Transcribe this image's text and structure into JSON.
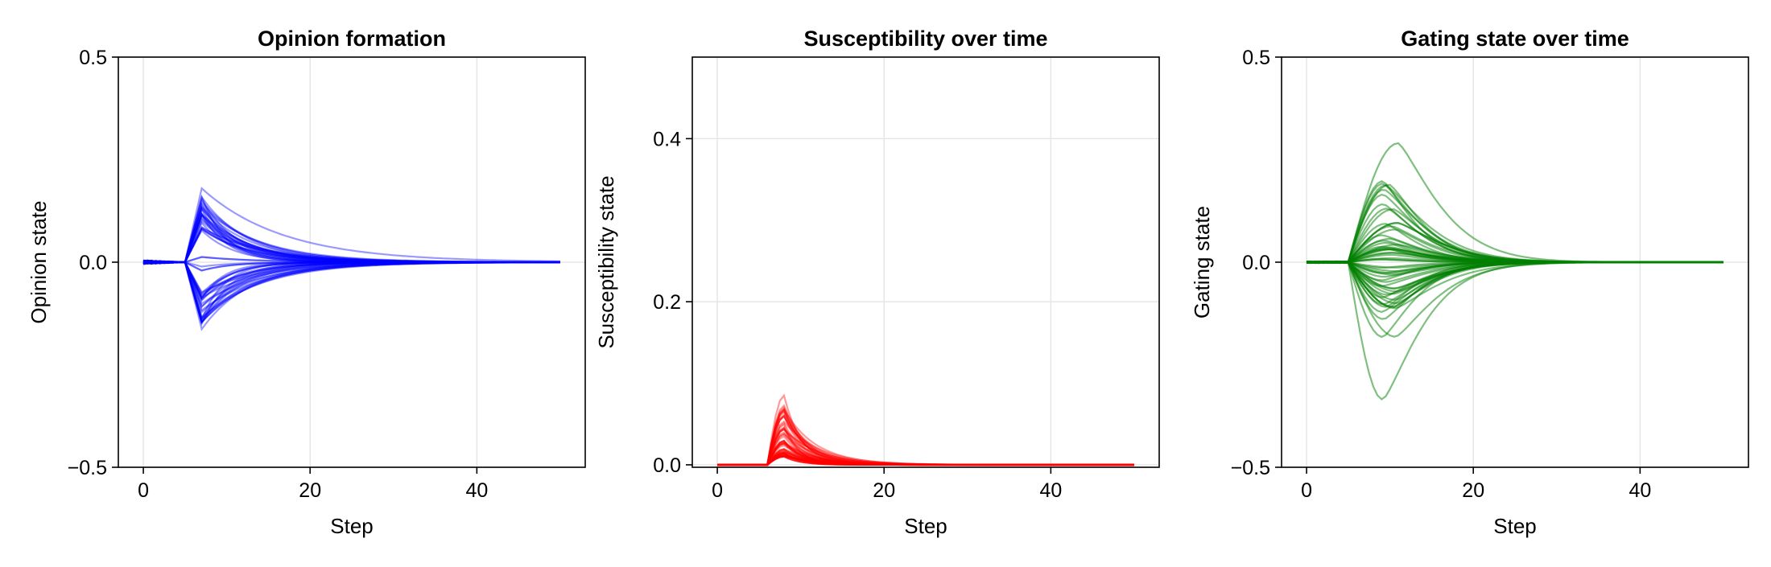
{
  "chart_data": [
    {
      "type": "line",
      "title": "Opinion formation",
      "xlabel": "Step",
      "ylabel": "Opinion state",
      "xlim": [
        -3,
        53
      ],
      "ylim": [
        -0.5,
        0.5
      ],
      "xticks": [
        0,
        20,
        40
      ],
      "xtick_labels": [
        "0",
        "20",
        "40"
      ],
      "yticks": [
        -0.5,
        0.0,
        0.5
      ],
      "ytick_labels": [
        "−0.5",
        "0.0",
        "0.5"
      ],
      "grid": true,
      "color": "#0000ff",
      "line_opacity": 0.4,
      "series_count": 60,
      "description_series": [
        {
          "x": [
            0,
            5,
            7,
            10,
            15,
            20,
            30,
            40,
            50
          ],
          "y": [
            0.0,
            0.0,
            0.18,
            0.14,
            0.09,
            0.055,
            0.02,
            0.005,
            0.0
          ]
        },
        {
          "x": [
            0,
            5,
            7,
            10,
            15,
            20,
            30,
            40,
            50
          ],
          "y": [
            0.0,
            0.0,
            0.14,
            0.08,
            0.03,
            0.01,
            0.0,
            0.0,
            0.0
          ]
        },
        {
          "x": [
            0,
            5,
            7,
            10,
            15,
            20,
            30,
            40,
            50
          ],
          "y": [
            0.0,
            0.0,
            -0.165,
            -0.09,
            -0.04,
            -0.015,
            0.0,
            0.0,
            0.0
          ]
        }
      ]
    },
    {
      "type": "line",
      "title": "Susceptibility over time",
      "xlabel": "Step",
      "ylabel": "Susceptibility state",
      "xlim": [
        -3,
        53
      ],
      "ylim": [
        -0.003,
        0.5
      ],
      "xticks": [
        0,
        20,
        40
      ],
      "xtick_labels": [
        "0",
        "20",
        "40"
      ],
      "yticks": [
        0.0,
        0.2,
        0.4
      ],
      "ytick_labels": [
        "0.0",
        "0.2",
        "0.4"
      ],
      "grid": true,
      "color": "#ff0000",
      "line_opacity": 0.4,
      "series_count": 60,
      "description_series": [
        {
          "x": [
            0,
            6,
            8,
            10,
            15,
            20,
            30,
            50
          ],
          "y": [
            0.0,
            0.0,
            0.085,
            0.05,
            0.012,
            0.002,
            0.0,
            0.0
          ]
        },
        {
          "x": [
            0,
            6,
            8,
            10,
            15,
            20,
            30,
            50
          ],
          "y": [
            0.0,
            0.0,
            0.03,
            0.02,
            0.005,
            0.001,
            0.0,
            0.0
          ]
        }
      ]
    },
    {
      "type": "line",
      "title": "Gating state over time",
      "xlabel": "Step",
      "ylabel": "Gating state",
      "xlim": [
        -3,
        53
      ],
      "ylim": [
        -0.5,
        0.5
      ],
      "xticks": [
        0,
        20,
        40
      ],
      "xtick_labels": [
        "0",
        "20",
        "40"
      ],
      "yticks": [
        -0.5,
        0.0,
        0.5
      ],
      "ytick_labels": [
        "−0.5",
        "0.0",
        "0.5"
      ],
      "grid": true,
      "color": "#008000",
      "line_opacity": 0.5,
      "series_count": 60,
      "description_series": [
        {
          "x": [
            0,
            5,
            7,
            10,
            15,
            20,
            30,
            40,
            50
          ],
          "y": [
            0.0,
            0.0,
            0.15,
            0.29,
            0.2,
            0.1,
            0.02,
            0.003,
            0.0
          ]
        },
        {
          "x": [
            0,
            5,
            7,
            10,
            15,
            20,
            30,
            40,
            50
          ],
          "y": [
            0.0,
            0.0,
            -0.17,
            -0.335,
            -0.24,
            -0.12,
            -0.025,
            -0.004,
            0.0
          ]
        }
      ]
    }
  ]
}
